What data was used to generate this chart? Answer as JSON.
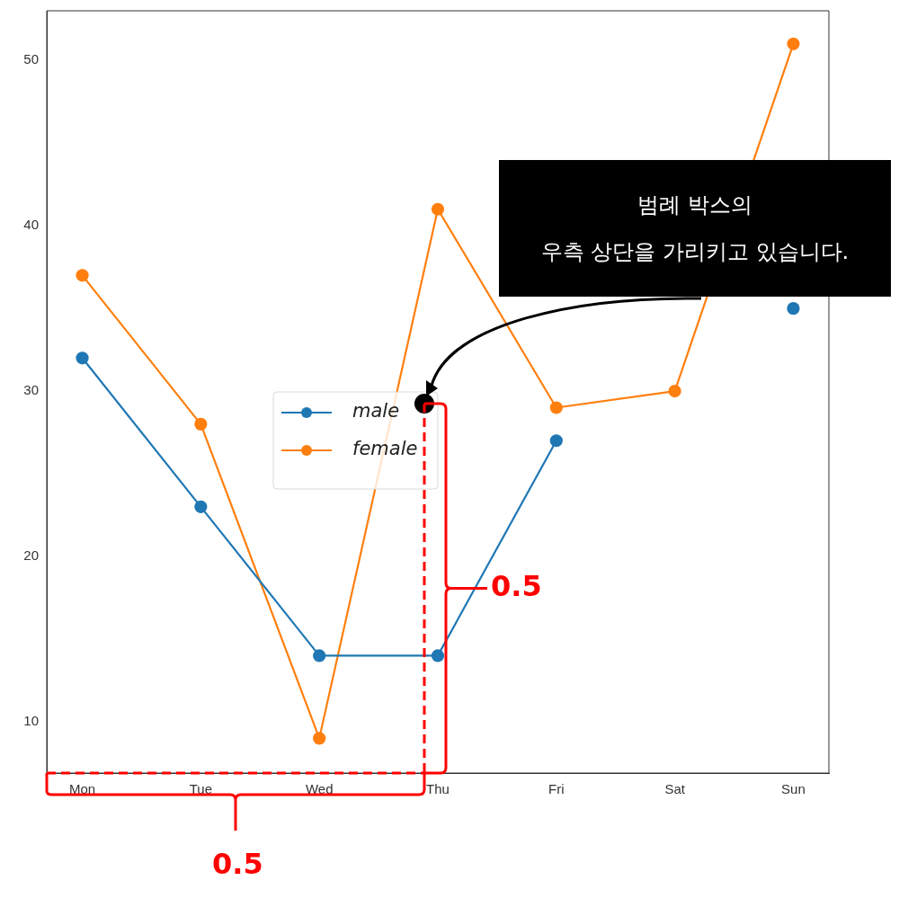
{
  "chart_data": {
    "type": "line",
    "categories": [
      "Mon",
      "Tue",
      "Wed",
      "Thu",
      "Fri",
      "Sat",
      "Sun"
    ],
    "series": [
      {
        "name": "male",
        "color": "#1f77b4",
        "values": [
          32,
          23,
          14,
          14,
          27,
          null,
          35
        ]
      },
      {
        "name": "female",
        "color": "#ff7f0e",
        "values": [
          37,
          28,
          9,
          41,
          29,
          30,
          51
        ]
      }
    ],
    "ylim": [
      6.9,
      53
    ],
    "yticks": [
      10,
      20,
      30,
      40,
      50
    ],
    "grid": false,
    "legend": "center",
    "marker": "circle",
    "line_style": "solid",
    "annotations": [
      "범례 박스의\n우측 상단을 가리키고 있습니다.",
      "0.5",
      "0.5"
    ]
  }
}
